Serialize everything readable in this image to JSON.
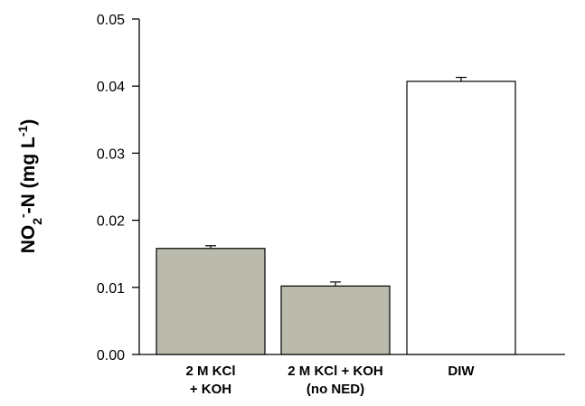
{
  "chart_data": {
    "type": "bar",
    "categories": [
      [
        "2 M KCl",
        "+ KOH"
      ],
      [
        "2 M KCl + KOH",
        "(no NED)"
      ],
      [
        "DIW"
      ]
    ],
    "values": [
      0.0158,
      0.0102,
      0.0407
    ],
    "errors": [
      0.0004,
      0.0006,
      0.0006
    ],
    "bar_colors": [
      "#bbbbad",
      "#bbbbad",
      "#ffffff"
    ],
    "ylabel": {
      "parts": [
        {
          "t": "NO",
          "s": "n"
        },
        {
          "t": "2",
          "s": "sub"
        },
        {
          "t": "-",
          "s": "sup"
        },
        {
          "t": "-N (mg L",
          "s": "n"
        },
        {
          "t": "-1",
          "s": "sup"
        },
        {
          "t": ")",
          "s": "n"
        }
      ]
    },
    "ylim": [
      0,
      0.05
    ],
    "yticks": [
      "0.00",
      "0.01",
      "0.02",
      "0.03",
      "0.04",
      "0.05"
    ],
    "grid": false,
    "legend": "none"
  }
}
